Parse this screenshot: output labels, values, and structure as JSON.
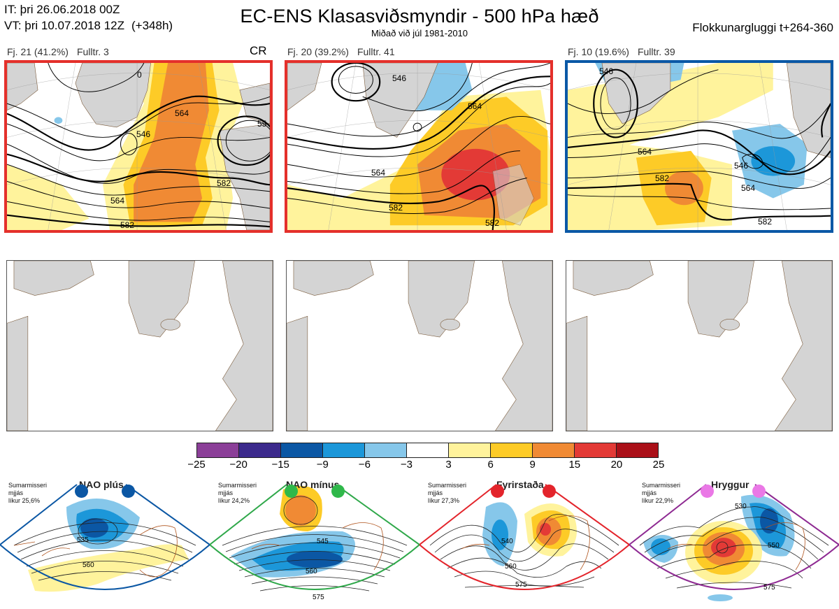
{
  "header": {
    "it_label": "IT: þri 26.06.2018 00Z",
    "vt_label": "VT: þri 10.07.2018 12Z",
    "vt_hours": "(+348h)",
    "title": "EC-ENS Klasasviðsmyndir - 500 hPa hæð",
    "subtitle": "Miðað við júl 1981-2010",
    "window": "Flokkunargluggi t+264-360"
  },
  "panels": [
    {
      "count": "Fj. 21 (41.2%)",
      "representative": "Fulltr. 3",
      "flag": "CR",
      "frame_color": "#e4302b",
      "contour_labels": [
        "546",
        "564",
        "582",
        "55",
        "0"
      ]
    },
    {
      "count": "Fj. 20 (39.2%)",
      "representative": "Fulltr. 41",
      "flag": "",
      "frame_color": "#e4302b",
      "contour_labels": [
        "546",
        "564",
        "564",
        "582",
        "582"
      ]
    },
    {
      "count": "Fj. 10 (19.6%)",
      "representative": "Fulltr. 39",
      "flag": "",
      "frame_color": "#0a58a6",
      "contour_labels": [
        "546",
        "564",
        "564",
        "582",
        "582",
        "546"
      ]
    }
  ],
  "colorbar": {
    "colors": [
      "#8b3f98",
      "#3c2a8c",
      "#0b57a4",
      "#1c97d9",
      "#86c7ea",
      "#ffffff",
      "#fff39c",
      "#fdcb27",
      "#f08a34",
      "#e33a36",
      "#aa1018"
    ],
    "ticks": [
      "−25",
      "−20",
      "−15",
      "−9",
      "−6",
      "−3",
      "3",
      "6",
      "9",
      "15",
      "20",
      "25"
    ]
  },
  "regimes": [
    {
      "name": "NAO plús",
      "note_1": "Sumarmisseri",
      "note_2": "mjjás",
      "note_3": "líkur 25,6%",
      "dot_color": "#0b57a4",
      "frame_color": "#0b57a4",
      "contour_labels": [
        "535",
        "560"
      ]
    },
    {
      "name": "NAO mínus",
      "note_1": "Sumarmisseri",
      "note_2": "mjjás",
      "note_3": "líkur 24,2%",
      "dot_color": "#2fb84a",
      "frame_color": "#2fa84a",
      "contour_labels": [
        "545",
        "560",
        "575"
      ]
    },
    {
      "name": "Fyrirstaða",
      "note_1": "Sumarmisseri",
      "note_2": "mjjás",
      "note_3": "líkur 27,3%",
      "dot_color": "#e3242b",
      "frame_color": "#e3242b",
      "contour_labels": [
        "540",
        "560",
        "575"
      ]
    },
    {
      "name": "Hryggur",
      "note_1": "Sumarmisseri",
      "note_2": "mjjás",
      "note_3": "líkur 22,9%",
      "dot_color": "#ea78e6",
      "frame_color": "#8e2a92",
      "contour_labels": [
        "530",
        "550",
        "575"
      ]
    }
  ]
}
